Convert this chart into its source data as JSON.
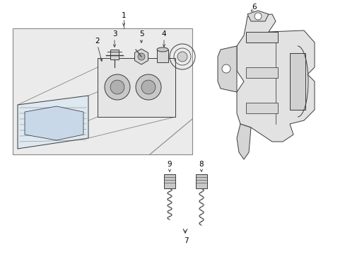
{
  "bg_color": "#ffffff",
  "lc": "#3a3a3a",
  "lc2": "#555555",
  "fig_width": 4.89,
  "fig_height": 3.6,
  "dpi": 100,
  "box_face": "#e8e8e8",
  "box_edge": "#888888",
  "label_fs": 7.5,
  "comp_face": "#f0f0f0",
  "comp_face2": "#d8d8d8"
}
